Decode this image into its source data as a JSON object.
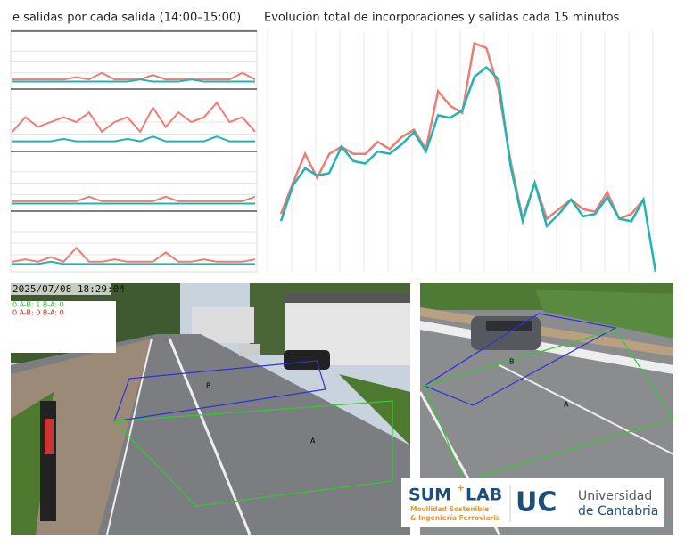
{
  "chart_data": [
    {
      "type": "line",
      "title": "e salidas por cada salida (14:00–15:00)",
      "categories": [
        null,
        null,
        null,
        null,
        null,
        null,
        null,
        null,
        null,
        null,
        null,
        null,
        null,
        null,
        null,
        null,
        null,
        null,
        null,
        null
      ],
      "panels": [
        {
          "ylim": [
            0,
            10
          ],
          "series": [
            {
              "color": "#f07b72",
              "values": [
                1,
                1,
                1,
                1,
                1,
                1.5,
                1,
                2.5,
                1,
                1,
                1,
                2,
                1,
                1,
                1,
                1,
                1,
                1,
                2.5,
                1
              ]
            },
            {
              "color": "#1fb5b5",
              "values": [
                0.5,
                0.5,
                0.5,
                0.5,
                0.5,
                0.5,
                0.5,
                0.5,
                0.5,
                0.5,
                1,
                0.5,
                0.5,
                0.5,
                1,
                0.5,
                0.5,
                0.5,
                0.5,
                0.5
              ]
            }
          ]
        },
        {
          "ylim": [
            0,
            10
          ],
          "series": [
            {
              "color": "#f07b72",
              "values": [
                3,
                6,
                4,
                5,
                6,
                5,
                7,
                3,
                5,
                6,
                3,
                8,
                4,
                7,
                5,
                6,
                9,
                5,
                6,
                3
              ]
            },
            {
              "color": "#1fb5b5",
              "values": [
                1,
                1,
                1,
                1,
                1.5,
                1,
                1,
                1,
                1,
                1.5,
                1,
                2,
                1,
                1,
                1,
                1,
                2,
                1,
                1,
                1
              ]
            }
          ]
        },
        {
          "ylim": [
            0,
            10
          ],
          "series": [
            {
              "color": "#f07b72",
              "values": [
                1,
                1,
                1,
                1,
                1,
                1,
                2,
                1,
                1,
                1,
                1,
                1,
                2,
                1,
                1,
                1,
                1,
                1,
                1,
                2
              ]
            },
            {
              "color": "#1fb5b5",
              "values": [
                0.5,
                0.5,
                0.5,
                0.5,
                0.5,
                0.5,
                0.5,
                0.5,
                0.5,
                0.5,
                0.5,
                0.5,
                0.5,
                0.5,
                0.5,
                0.5,
                0.5,
                0.5,
                0.5,
                0.5
              ]
            }
          ]
        },
        {
          "ylim": [
            0,
            10
          ],
          "series": [
            {
              "color": "#f07b72",
              "values": [
                1,
                1.5,
                1,
                2,
                1,
                4,
                1,
                1,
                1.5,
                1,
                1,
                1,
                3,
                1,
                1,
                1.5,
                1,
                1,
                1,
                1.5
              ]
            },
            {
              "color": "#1fb5b5",
              "values": [
                0.5,
                0.5,
                0.5,
                1,
                0.5,
                0.5,
                0.5,
                0.5,
                0.5,
                0.5,
                0.5,
                0.5,
                0.5,
                0.5,
                0.5,
                0.5,
                0.5,
                0.5,
                0.5,
                0.5
              ]
            }
          ]
        }
      ]
    },
    {
      "type": "line",
      "title": "Evolución total de incorporaciones y salidas cada 15 minutos",
      "categories": [
        null,
        null,
        null,
        null,
        null,
        null,
        null,
        null,
        null,
        null,
        null,
        null,
        null,
        null,
        null,
        null,
        null,
        null,
        null,
        null,
        null,
        null,
        null,
        null,
        null,
        null,
        null,
        null,
        null,
        null,
        null,
        null
      ],
      "ylim": [
        0,
        100
      ],
      "series": [
        {
          "color": "#f07b72",
          "values": [
            24,
            37,
            49,
            39,
            49,
            52,
            49,
            49,
            54,
            51,
            56,
            59,
            51,
            75,
            69,
            66,
            95,
            93,
            76,
            46,
            22,
            37,
            22,
            26,
            30,
            26,
            25,
            33,
            22,
            24,
            30,
            null
          ]
        },
        {
          "color": "#1fb5b5",
          "values": [
            21,
            36,
            43,
            40,
            41,
            52,
            46,
            45,
            50,
            49,
            53,
            58,
            50,
            65,
            64,
            67,
            81,
            85,
            80,
            44,
            21,
            37,
            19,
            24,
            30,
            23,
            24,
            31,
            22,
            21,
            30,
            0
          ]
        }
      ]
    }
  ],
  "cameras": [
    {
      "timestamp": "2025/07/08  18:29:04",
      "counters": [
        {
          "text": "0 A-B: 1  B-A: 0",
          "color": "#22c422"
        },
        {
          "text": "0 A-B: 0  B-A: 0",
          "color": "#e02020"
        }
      ],
      "zones": [
        "A",
        "B"
      ]
    },
    {
      "zones": [
        "A",
        "B"
      ]
    }
  ],
  "logos": {
    "sum": "SUM",
    "lab": "LAB",
    "line1": "Movilidad Sostenible",
    "line2": "& Ingeniería Ferroviaria",
    "uc": "UC",
    "uni1": "Universidad",
    "uni2": "de Cantabria"
  }
}
